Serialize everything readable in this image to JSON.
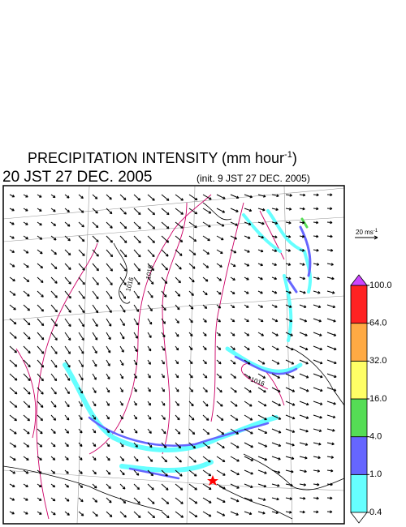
{
  "header": {
    "title": "PRECIPITATION INTENSITY (mm hour",
    "title_sup": "-1",
    "title_end": ")",
    "valid": "20 JST 27 DEC. 2005",
    "init": "(init. 9 JST 27 DEC. 2005)"
  },
  "reference_vector": {
    "label": "20 ms",
    "sup": "-1"
  },
  "contour_labels": [
    "1016",
    "1016",
    "1016"
  ],
  "colorbar": {
    "levels": [
      {
        "value": 0.4,
        "label": "0.4"
      },
      {
        "value": 1,
        "label": "1.0"
      },
      {
        "value": 4,
        "label": "4.0"
      },
      {
        "value": 16,
        "label": "16.0"
      },
      {
        "value": 32,
        "label": "32.0"
      },
      {
        "value": 64,
        "label": "64.0"
      },
      {
        "value": 100,
        "label": "100.0"
      }
    ],
    "colors": [
      "#66ffff",
      "#6666ff",
      "#55dd55",
      "#ffff66",
      "#ffaa44",
      "#ff2222"
    ],
    "under_color": "#ffffff",
    "over_color": "#cc44ff"
  }
}
